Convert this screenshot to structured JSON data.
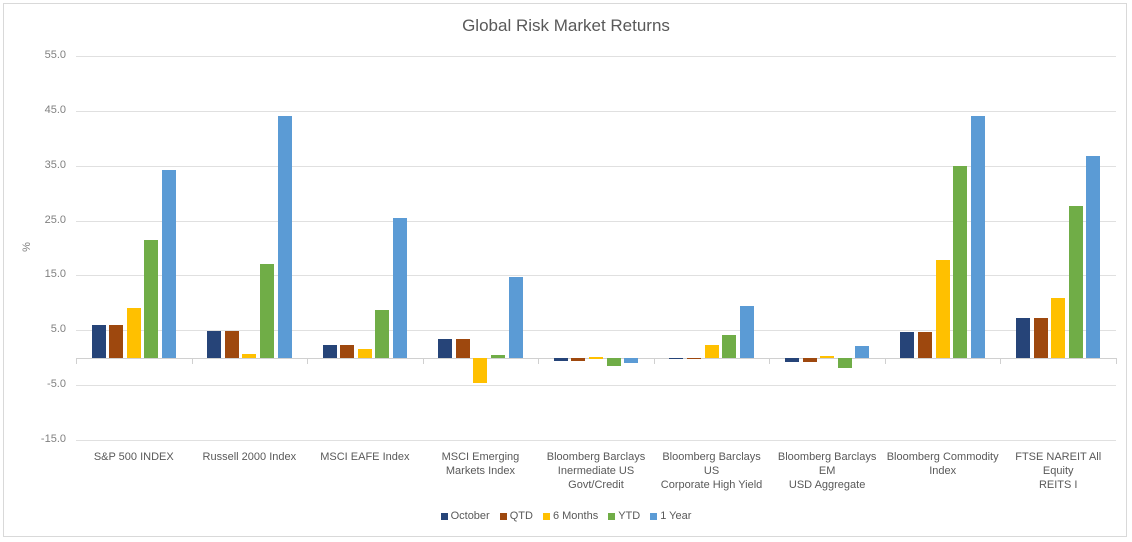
{
  "chart_data": {
    "type": "bar",
    "title": "Global Risk Market Returns",
    "xlabel": "",
    "ylabel": "%",
    "ylim": [
      -15,
      55
    ],
    "yticks": [
      "55.0",
      "45.0",
      "35.0",
      "25.0",
      "15.0",
      "5.0",
      "-5.0",
      "-15.0"
    ],
    "grid": true,
    "legend_position": "bottom",
    "categories": [
      "S&P 500 INDEX",
      "Russell 2000 Index",
      "MSCI EAFE Index",
      "MSCI Emerging Markets Index",
      "Bloomberg Barclays Inermediate US Govt/Credit",
      "Bloomberg Barclays US Corporate High Yield",
      "Bloomberg Barclays EM USD Aggregate",
      "Bloomberg Commodity Index",
      "FTSE NAREIT All Equity REITS I"
    ],
    "series": [
      {
        "name": "October",
        "color": "#264478",
        "values": [
          6.0,
          4.9,
          2.4,
          3.5,
          -0.6,
          -0.2,
          -0.7,
          4.6,
          7.2
        ]
      },
      {
        "name": "QTD",
        "color": "#9E480E",
        "values": [
          6.0,
          4.9,
          2.4,
          3.5,
          -0.6,
          -0.2,
          -0.7,
          4.6,
          7.2
        ]
      },
      {
        "name": "6 Months",
        "color": "#FFC000",
        "values": [
          9.1,
          0.6,
          1.5,
          -4.6,
          0.1,
          2.4,
          0.4,
          17.9,
          10.9
        ]
      },
      {
        "name": "YTD",
        "color": "#70AD47",
        "values": [
          21.5,
          17.1,
          8.7,
          0.5,
          -1.5,
          4.2,
          -1.8,
          35.0,
          27.6
        ]
      },
      {
        "name": "1 Year",
        "color": "#5B9BD5",
        "values": [
          34.2,
          44.1,
          25.5,
          14.8,
          -0.9,
          9.5,
          2.1,
          44.0,
          36.7
        ]
      }
    ]
  },
  "labels": {
    "title": "Global Risk Market Returns",
    "ylabel": "%",
    "yticks": [
      "55.0",
      "45.0",
      "35.0",
      "25.0",
      "15.0",
      "5.0",
      "-5.0",
      "-15.0"
    ],
    "categories": [
      [
        "S&P 500 INDEX"
      ],
      [
        "Russell 2000 Index"
      ],
      [
        "MSCI EAFE Index"
      ],
      [
        "MSCI Emerging",
        "Markets Index"
      ],
      [
        "Bloomberg Barclays",
        "Inermediate US",
        "Govt/Credit"
      ],
      [
        "Bloomberg Barclays US",
        "Corporate High Yield"
      ],
      [
        "Bloomberg Barclays EM",
        "USD Aggregate"
      ],
      [
        "Bloomberg Commodity",
        "Index"
      ],
      [
        "FTSE NAREIT All Equity",
        "REITS I"
      ]
    ],
    "legend": [
      "October",
      "QTD",
      "6 Months",
      "YTD",
      "1 Year"
    ]
  }
}
